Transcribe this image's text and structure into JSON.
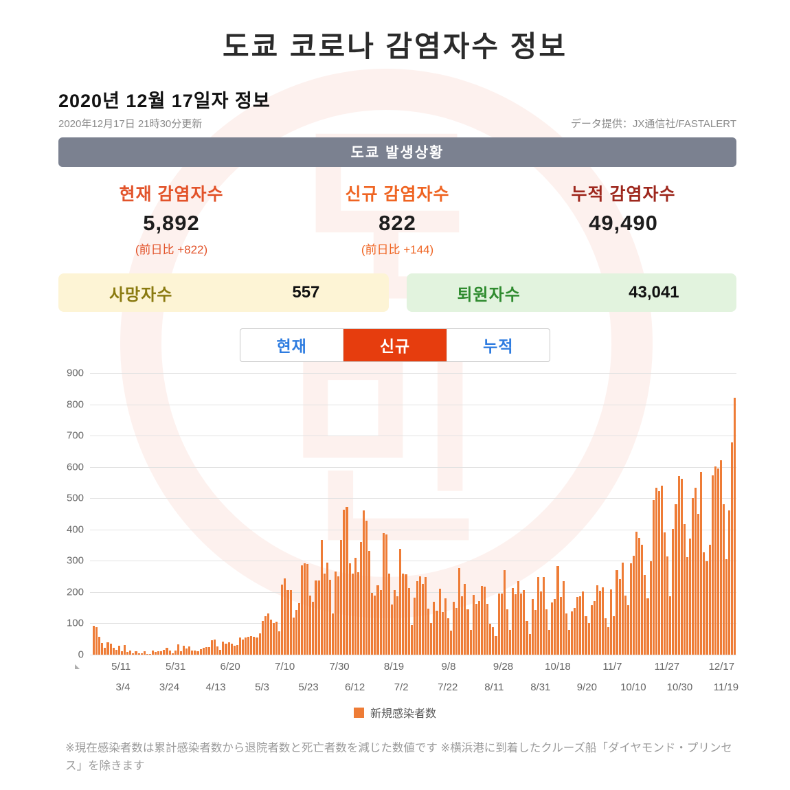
{
  "title": "도쿄 코로나 감염자수 정보",
  "header": {
    "date_heading": "2020년 12월 17일자 정보",
    "updated": "2020年12月17日 21時30分更新",
    "provider": "データ提供：JX通信社/FASTALERT"
  },
  "banner": {
    "label": "도쿄 발생상황"
  },
  "stats": [
    {
      "label": "현재 감염자수",
      "value": "5,892",
      "note": "(前日比 +822)",
      "color": "#e2532a"
    },
    {
      "label": "신규 감염자수",
      "value": "822",
      "note": "(前日比 +144)",
      "color": "#ef6422"
    },
    {
      "label": "누적 감염자수",
      "value": "49,490",
      "note": "",
      "color": "#9e281e"
    }
  ],
  "boxes": [
    {
      "label": "사망자수",
      "value": "557",
      "bg": "#fdf4d5",
      "label_color": "#8a7a10"
    },
    {
      "label": "퇴원자수",
      "value": "43,041",
      "bg": "#e2f3de",
      "label_color": "#2f8b2f"
    }
  ],
  "tabs": [
    {
      "label": "현재",
      "active": false
    },
    {
      "label": "신규",
      "active": true
    },
    {
      "label": "누적",
      "active": false
    }
  ],
  "chart_data": {
    "type": "bar",
    "title": "",
    "xlabel": "",
    "ylabel": "",
    "ylim": [
      0,
      900
    ],
    "yticks": [
      0,
      100,
      200,
      300,
      400,
      500,
      600,
      700,
      800,
      900
    ],
    "grid": true,
    "bar_color": "#ee7c36",
    "legend": [
      {
        "label": "新規感染者数",
        "color": "#ee7c36"
      }
    ],
    "x_labels_top": [
      "5/11",
      "5/31",
      "6/20",
      "7/10",
      "7/30",
      "8/19",
      "9/8",
      "9/28",
      "10/18",
      "11/7",
      "11/27",
      "12/17"
    ],
    "x_labels_bottom": [
      "3/4",
      "3/24",
      "4/13",
      "5/3",
      "5/23",
      "6/12",
      "7/2",
      "7/22",
      "8/11",
      "8/31",
      "9/20",
      "10/10",
      "10/30",
      "11/19"
    ],
    "values": [
      93,
      87,
      58,
      38,
      23,
      39,
      36,
      22,
      15,
      28,
      10,
      30,
      9,
      14,
      5,
      10,
      5,
      5,
      11,
      3,
      2,
      14,
      8,
      10,
      11,
      15,
      22,
      14,
      5,
      13,
      34,
      12,
      28,
      20,
      26,
      14,
      13,
      12,
      18,
      22,
      25,
      24,
      47,
      48,
      27,
      16,
      41,
      35,
      39,
      35,
      29,
      31,
      55,
      48,
      54,
      57,
      60,
      58,
      54,
      67,
      107,
      124,
      131,
      111,
      102,
      106,
      75,
      224,
      243,
      206,
      206,
      119,
      143,
      165,
      286,
      293,
      290,
      188,
      168,
      237,
      238,
      366,
      260,
      295,
      239,
      131,
      266,
      250,
      367,
      463,
      472,
      292,
      258,
      309,
      263,
      360,
      462,
      429,
      331,
      197,
      188,
      222,
      206,
      389,
      385,
      260,
      161,
      207,
      186,
      339,
      258,
      256,
      212,
      95,
      182,
      236,
      250,
      226,
      247,
      148,
      100,
      170,
      141,
      211,
      136,
      181,
      116,
      77,
      170,
      149,
      276,
      187,
      226,
      146,
      80,
      191,
      163,
      171,
      220,
      218,
      162,
      98,
      88,
      59,
      195,
      195,
      270,
      144,
      78,
      212,
      194,
      235,
      196,
      207,
      108,
      66,
      177,
      142,
      248,
      203,
      249,
      146,
      78,
      166,
      177,
      284,
      184,
      235,
      132,
      78,
      139,
      150,
      185,
      186,
      203,
      124,
      102,
      158,
      171,
      221,
      204,
      215,
      116,
      87,
      209,
      122,
      269,
      242,
      294,
      189,
      157,
      293,
      317,
      393,
      374,
      352,
      255,
      180,
      298,
      493,
      534,
      522,
      539,
      391,
      314,
      186,
      401,
      481,
      570,
      561,
      418,
      311,
      372,
      500,
      533,
      449,
      584,
      327,
      299,
      352,
      572,
      602,
      595,
      621,
      480,
      305,
      460,
      678,
      822
    ]
  },
  "legend": {
    "label": "新規感染者数"
  },
  "footer_note": "※現在感染者数は累計感染者数から退院者数と死亡者数を減じた数値です ※横浜港に到着したクルーズ船「ダイヤモンド・プリンセス」を除きます",
  "watermark": {
    "line1": "도",
    "line2": "민"
  }
}
